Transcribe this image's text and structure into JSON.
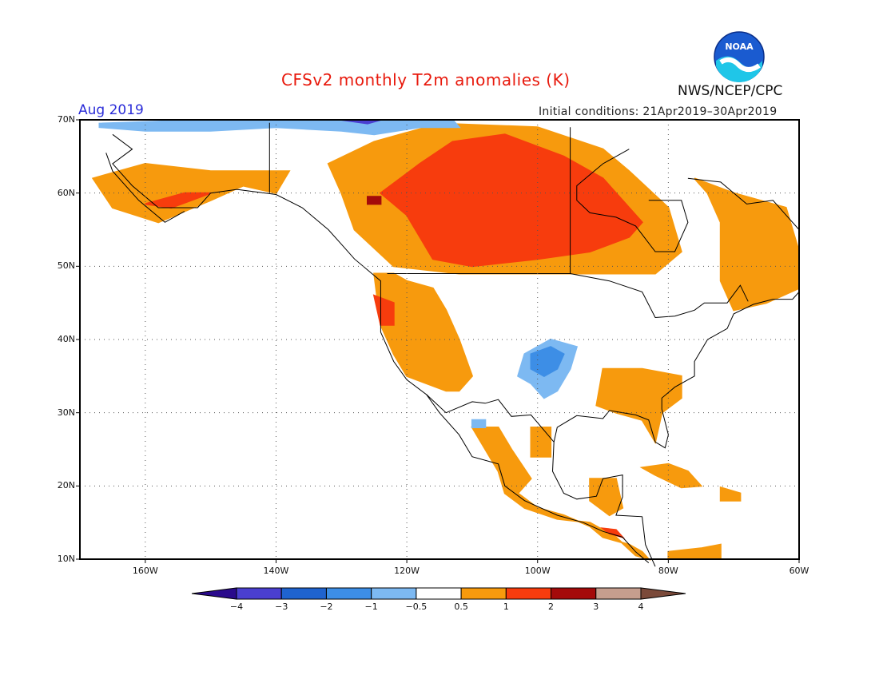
{
  "title": "CFSv2 monthly T2m anomalies (K)",
  "month": "Aug 2019",
  "initial_conditions": "Initial conditions: 21Apr2019–30Apr2019",
  "org": "NWS/NCEP/CPC",
  "logo_text": "NOAA",
  "map": {
    "lon_range": [
      -170,
      -60
    ],
    "lat_range": [
      10,
      70
    ],
    "lat_ticks": [
      {
        "value": 70,
        "label": "70N"
      },
      {
        "value": 60,
        "label": "60N"
      },
      {
        "value": 50,
        "label": "50N"
      },
      {
        "value": 40,
        "label": "40N"
      },
      {
        "value": 30,
        "label": "30N"
      },
      {
        "value": 20,
        "label": "20N"
      },
      {
        "value": 10,
        "label": "10N"
      }
    ],
    "lon_ticks": [
      {
        "value": -160,
        "label": "160W"
      },
      {
        "value": -140,
        "label": "140W"
      },
      {
        "value": -120,
        "label": "120W"
      },
      {
        "value": -100,
        "label": "100W"
      },
      {
        "value": -80,
        "label": "80W"
      },
      {
        "value": -60,
        "label": "60W"
      }
    ],
    "grid": "dotted"
  },
  "colorbar": {
    "labels": [
      "−4",
      "−3",
      "−2",
      "−1",
      "−0.5",
      "0.5",
      "1",
      "2",
      "3",
      "4"
    ],
    "colors": [
      "#2a0a8c",
      "#4a3fd0",
      "#1f63cf",
      "#3d8ee6",
      "#7db9f2",
      "#ffffff",
      "#f79a0d",
      "#f73c0d",
      "#a40a0a",
      "#c69e8e",
      "#7b4a3a"
    ]
  },
  "anomaly_regions": [
    {
      "level": "warm1",
      "color": "#f79a0d",
      "polygons": [
        [
          [
            -125,
            49
          ],
          [
            -124,
            42
          ],
          [
            -122,
            38
          ],
          [
            -120,
            35
          ],
          [
            -114,
            33
          ],
          [
            -112,
            33
          ],
          [
            -110,
            35
          ],
          [
            -112,
            40
          ],
          [
            -114,
            44
          ],
          [
            -116,
            47
          ],
          [
            -120,
            48
          ],
          [
            -122,
            49
          ]
        ],
        [
          [
            -130,
            60
          ],
          [
            -128,
            55
          ],
          [
            -122,
            50
          ],
          [
            -112,
            49
          ],
          [
            -100,
            49
          ],
          [
            -90,
            49
          ],
          [
            -82,
            49
          ],
          [
            -78,
            52
          ],
          [
            -80,
            58
          ],
          [
            -86,
            63
          ],
          [
            -90,
            66
          ],
          [
            -100,
            69
          ],
          [
            -115,
            69.5
          ],
          [
            -125,
            67
          ],
          [
            -132,
            64
          ]
        ],
        [
          [
            -168,
            62
          ],
          [
            -165,
            58
          ],
          [
            -158,
            56
          ],
          [
            -150,
            59
          ],
          [
            -145,
            61
          ],
          [
            -140,
            60
          ],
          [
            -138,
            63
          ],
          [
            -150,
            63
          ],
          [
            -160,
            64
          ]
        ],
        [
          [
            -76,
            62
          ],
          [
            -70,
            60
          ],
          [
            -62,
            58
          ],
          [
            -60,
            52
          ],
          [
            -60,
            47
          ],
          [
            -65,
            45
          ],
          [
            -70,
            44
          ],
          [
            -72,
            48
          ],
          [
            -72,
            56
          ],
          [
            -74,
            60
          ]
        ],
        [
          [
            -90,
            36
          ],
          [
            -84,
            36
          ],
          [
            -78,
            35
          ],
          [
            -78,
            32
          ],
          [
            -81,
            30
          ],
          [
            -82,
            26
          ],
          [
            -84,
            29
          ],
          [
            -88,
            30
          ],
          [
            -91,
            31
          ]
        ],
        [
          [
            -110,
            28
          ],
          [
            -106,
            28
          ],
          [
            -104,
            25
          ],
          [
            -101,
            21
          ],
          [
            -103,
            19
          ],
          [
            -100,
            17
          ],
          [
            -96,
            16
          ],
          [
            -92,
            14.5
          ],
          [
            -90,
            13
          ],
          [
            -86,
            12
          ],
          [
            -84,
            11
          ],
          [
            -83,
            10
          ],
          [
            -85,
            10.5
          ],
          [
            -88,
            13
          ],
          [
            -92,
            15
          ],
          [
            -97,
            15.5
          ],
          [
            -102,
            17
          ],
          [
            -105,
            19
          ],
          [
            -106,
            22
          ]
        ],
        [
          [
            -101,
            28
          ],
          [
            -98,
            28
          ],
          [
            -98,
            24
          ],
          [
            -101,
            24
          ]
        ],
        [
          [
            -92,
            21
          ],
          [
            -88,
            21
          ],
          [
            -87,
            17
          ],
          [
            -89,
            16
          ],
          [
            -92,
            18
          ]
        ],
        [
          [
            -84,
            22.5
          ],
          [
            -80,
            23
          ],
          [
            -77,
            22
          ],
          [
            -75,
            20
          ],
          [
            -78,
            19.8
          ],
          [
            -82,
            21.5
          ]
        ],
        [
          [
            -72,
            19.8
          ],
          [
            -69,
            19
          ],
          [
            -69,
            18
          ],
          [
            -72,
            18
          ]
        ],
        [
          [
            -80,
            11
          ],
          [
            -75,
            11.5
          ],
          [
            -72,
            12
          ],
          [
            -72,
            10
          ],
          [
            -80,
            10
          ]
        ]
      ]
    },
    {
      "level": "warm2",
      "color": "#f73c0d",
      "polygons": [
        [
          [
            -124,
            60
          ],
          [
            -120,
            57
          ],
          [
            -118,
            54
          ],
          [
            -116,
            51
          ],
          [
            -110,
            50
          ],
          [
            -100,
            51
          ],
          [
            -92,
            52
          ],
          [
            -86,
            54
          ],
          [
            -84,
            56
          ],
          [
            -86,
            58
          ],
          [
            -90,
            62
          ],
          [
            -96,
            65
          ],
          [
            -105,
            68
          ],
          [
            -113,
            67
          ],
          [
            -118,
            64
          ]
        ],
        [
          [
            -125,
            46
          ],
          [
            -124,
            42
          ],
          [
            -122,
            42
          ],
          [
            -122,
            45
          ]
        ],
        [
          [
            -160,
            58.5
          ],
          [
            -154,
            60
          ],
          [
            -150,
            60
          ],
          [
            -156,
            58
          ]
        ],
        [
          [
            -90,
            14.2
          ],
          [
            -88,
            14
          ],
          [
            -87,
            13
          ],
          [
            -89,
            13.5
          ]
        ]
      ]
    },
    {
      "level": "warm3",
      "color": "#a40a0a",
      "polygons": [
        [
          [
            -126,
            59.5
          ],
          [
            -124,
            59.5
          ],
          [
            -124,
            58.5
          ],
          [
            -126,
            58.5
          ]
        ]
      ]
    },
    {
      "level": "cool1",
      "color": "#7db9f2",
      "polygons": [
        [
          [
            -102,
            38
          ],
          [
            -98,
            40
          ],
          [
            -94,
            39
          ],
          [
            -95,
            36
          ],
          [
            -97,
            33
          ],
          [
            -99,
            32
          ],
          [
            -101,
            34
          ],
          [
            -103,
            35
          ]
        ],
        [
          [
            -167,
            69.5
          ],
          [
            -150,
            70
          ],
          [
            -140,
            70
          ],
          [
            -135,
            69.8
          ],
          [
            -120,
            70
          ],
          [
            -113,
            70
          ],
          [
            -112,
            69
          ],
          [
            -118,
            69
          ],
          [
            -125,
            68
          ],
          [
            -130,
            68.5
          ],
          [
            -140,
            69
          ],
          [
            -150,
            68.5
          ],
          [
            -160,
            68.5
          ],
          [
            -167,
            69
          ]
        ],
        [
          [
            -110,
            29
          ],
          [
            -108,
            29
          ],
          [
            -108,
            28
          ],
          [
            -110,
            28
          ]
        ]
      ]
    },
    {
      "level": "cool2",
      "color": "#3d8ee6",
      "polygons": [
        [
          [
            -101,
            38
          ],
          [
            -98,
            39
          ],
          [
            -96,
            38
          ],
          [
            -97,
            36
          ],
          [
            -99,
            35
          ],
          [
            -101,
            36
          ]
        ]
      ]
    },
    {
      "level": "cool3",
      "color": "#4a3fd0",
      "polygons": [
        [
          [
            -130,
            70
          ],
          [
            -124,
            70
          ],
          [
            -126,
            69.5
          ]
        ]
      ]
    }
  ]
}
